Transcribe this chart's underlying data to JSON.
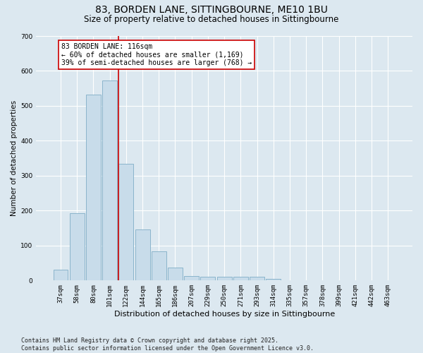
{
  "title": "83, BORDEN LANE, SITTINGBOURNE, ME10 1BU",
  "subtitle": "Size of property relative to detached houses in Sittingbourne",
  "xlabel": "Distribution of detached houses by size in Sittingbourne",
  "ylabel": "Number of detached properties",
  "categories": [
    "37sqm",
    "58sqm",
    "80sqm",
    "101sqm",
    "122sqm",
    "144sqm",
    "165sqm",
    "186sqm",
    "207sqm",
    "229sqm",
    "250sqm",
    "271sqm",
    "293sqm",
    "314sqm",
    "335sqm",
    "357sqm",
    "378sqm",
    "399sqm",
    "421sqm",
    "442sqm",
    "463sqm"
  ],
  "values": [
    30,
    193,
    533,
    572,
    335,
    147,
    84,
    38,
    13,
    10,
    10,
    10,
    10,
    5,
    0,
    0,
    0,
    0,
    0,
    0,
    0
  ],
  "bar_color": "#c8dcea",
  "bar_edge_color": "#8ab4cc",
  "vline_index": 4,
  "vline_color": "#cc0000",
  "annotation_text": "83 BORDEN LANE: 116sqm\n← 60% of detached houses are smaller (1,169)\n39% of semi-detached houses are larger (768) →",
  "annotation_box_color": "#ffffff",
  "annotation_box_edge": "#cc0000",
  "ylim": [
    0,
    700
  ],
  "yticks": [
    0,
    100,
    200,
    300,
    400,
    500,
    600,
    700
  ],
  "background_color": "#dce8f0",
  "footer": "Contains HM Land Registry data © Crown copyright and database right 2025.\nContains public sector information licensed under the Open Government Licence v3.0.",
  "title_fontsize": 10,
  "subtitle_fontsize": 8.5,
  "xlabel_fontsize": 8,
  "ylabel_fontsize": 7.5,
  "tick_fontsize": 6.5,
  "annotation_fontsize": 7,
  "footer_fontsize": 6
}
